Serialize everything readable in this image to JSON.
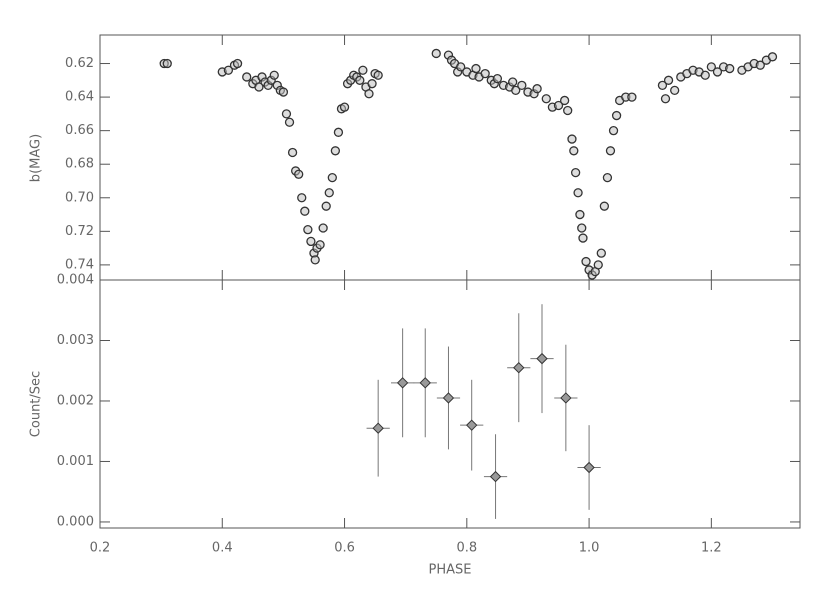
{
  "chart_data": [
    {
      "type": "scatter",
      "ylabel": "b(MAG)",
      "color": "#333333",
      "y_inverted": true,
      "xlim": [
        0.2,
        1.345
      ],
      "ylim": [
        0.603,
        0.749
      ],
      "yticks": [
        0.62,
        0.64,
        0.66,
        0.68,
        {
          "value": 0.7,
          "label": "0.70"
        },
        0.72,
        0.74
      ],
      "x": [
        0.305,
        0.31,
        0.4,
        0.41,
        0.42,
        0.425,
        0.44,
        0.45,
        0.455,
        0.46,
        0.465,
        0.47,
        0.475,
        0.48,
        0.485,
        0.49,
        0.495,
        0.5,
        0.505,
        0.51,
        0.515,
        0.52,
        0.525,
        0.53,
        0.535,
        0.54,
        0.545,
        0.55,
        0.552,
        0.555,
        0.56,
        0.565,
        0.57,
        0.575,
        0.58,
        0.585,
        0.59,
        0.595,
        0.6,
        0.605,
        0.61,
        0.615,
        0.62,
        0.625,
        0.63,
        0.635,
        0.64,
        0.645,
        0.65,
        0.655,
        0.75,
        0.77,
        0.775,
        0.78,
        0.785,
        0.79,
        0.8,
        0.81,
        0.815,
        0.82,
        0.83,
        0.84,
        0.845,
        0.85,
        0.86,
        0.87,
        0.875,
        0.88,
        0.89,
        0.9,
        0.91,
        0.915,
        0.93,
        0.94,
        0.95,
        0.96,
        0.965,
        0.972,
        0.975,
        0.978,
        0.982,
        0.985,
        0.988,
        0.99,
        0.995,
        1.0,
        1.005,
        1.01,
        1.015,
        1.02,
        1.025,
        1.03,
        1.035,
        1.04,
        1.045,
        1.05,
        1.06,
        1.07,
        1.12,
        1.125,
        1.13,
        1.14,
        1.15,
        1.16,
        1.17,
        1.18,
        1.19,
        1.2,
        1.21,
        1.22,
        1.23,
        1.25,
        1.26,
        1.27,
        1.28,
        1.29,
        1.3
      ],
      "values": [
        0.62,
        0.62,
        0.625,
        0.624,
        0.621,
        0.62,
        0.628,
        0.632,
        0.63,
        0.634,
        0.628,
        0.631,
        0.633,
        0.63,
        0.627,
        0.633,
        0.636,
        0.637,
        0.65,
        0.655,
        0.673,
        0.684,
        0.686,
        0.7,
        0.708,
        0.719,
        0.726,
        0.733,
        0.737,
        0.73,
        0.728,
        0.718,
        0.705,
        0.697,
        0.688,
        0.672,
        0.661,
        0.647,
        0.646,
        0.632,
        0.63,
        0.627,
        0.628,
        0.63,
        0.624,
        0.634,
        0.638,
        0.632,
        0.626,
        0.627,
        0.614,
        0.615,
        0.618,
        0.62,
        0.625,
        0.622,
        0.625,
        0.627,
        0.623,
        0.628,
        0.626,
        0.63,
        0.632,
        0.629,
        0.633,
        0.634,
        0.631,
        0.636,
        0.633,
        0.637,
        0.638,
        0.635,
        0.641,
        0.646,
        0.645,
        0.642,
        0.648,
        0.665,
        0.672,
        0.685,
        0.697,
        0.71,
        0.718,
        0.724,
        0.738,
        0.743,
        0.746,
        0.744,
        0.74,
        0.733,
        0.705,
        0.688,
        0.672,
        0.66,
        0.651,
        0.642,
        0.64,
        0.64,
        0.633,
        0.641,
        0.63,
        0.636,
        0.628,
        0.626,
        0.624,
        0.625,
        0.627,
        0.622,
        0.625,
        0.622,
        0.623,
        0.624,
        0.622,
        0.62,
        0.621,
        0.618,
        0.616
      ]
    },
    {
      "type": "errorbar",
      "ylabel": "Count/Sec",
      "xlabel": "PHASE",
      "color": "#999999",
      "xlim": [
        0.2,
        1.345
      ],
      "ylim": [
        -0.0001,
        0.004
      ],
      "xticks": [
        0.2,
        0.4,
        0.6,
        0.8,
        {
          "value": 1.0,
          "label": "1.0"
        },
        1.2
      ],
      "yticks": [
        {
          "value": 0,
          "label": "0.000"
        },
        {
          "value": 0.001,
          "label": "0.001"
        },
        {
          "value": 0.002,
          "label": "0.002"
        },
        {
          "value": 0.003,
          "label": "0.003"
        },
        {
          "value": 0.004,
          "label": "0.004"
        }
      ],
      "x": [
        0.655,
        0.695,
        0.732,
        0.77,
        0.808,
        0.847,
        0.885,
        0.923,
        0.962,
        1.0
      ],
      "values": [
        0.00155,
        0.0023,
        0.0023,
        0.00205,
        0.0016,
        0.00075,
        0.00255,
        0.0027,
        0.00205,
        0.0009
      ],
      "yerr": [
        0.0008,
        0.0009,
        0.0009,
        0.00085,
        0.00075,
        0.0007,
        0.0009,
        0.0009,
        0.00088,
        0.0007
      ],
      "xerr": [
        0.019,
        0.019,
        0.019,
        0.019,
        0.019,
        0.019,
        0.019,
        0.019,
        0.019,
        0.019
      ]
    }
  ]
}
